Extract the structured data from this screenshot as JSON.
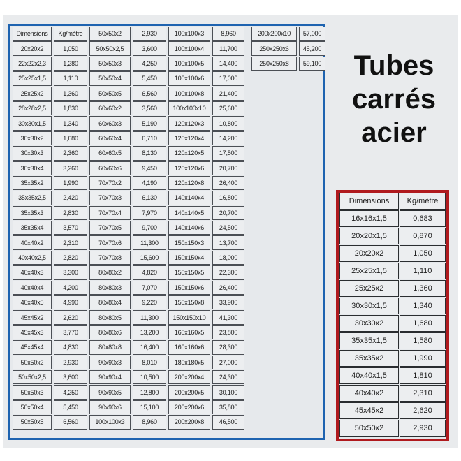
{
  "title_lines": [
    "Tubes",
    "carrés",
    "acier"
  ],
  "colors": {
    "blue_frame": "#1e63b0",
    "red_frame": "#b01a1e"
  },
  "main_table": {
    "rows": [
      [
        "Dimensions",
        "Kg/mètre",
        "50x50x2",
        "2,930",
        "100x100x3",
        "8,960"
      ],
      [
        "20x20x2",
        "1,050",
        "50x50x2,5",
        "3,600",
        "100x100x4",
        "11,700"
      ],
      [
        "22x22x2,3",
        "1,280",
        "50x50x3",
        "4,250",
        "100x100x5",
        "14,400"
      ],
      [
        "25x25x1,5",
        "1,110",
        "50x50x4",
        "5,450",
        "100x100x6",
        "17,000"
      ],
      [
        "25x25x2",
        "1,360",
        "50x50x5",
        "6,560",
        "100x100x8",
        "21,400"
      ],
      [
        "28x28x2,5",
        "1,830",
        "60x60x2",
        "3,560",
        "100x100x10",
        "25,600"
      ],
      [
        "30x30x1,5",
        "1,340",
        "60x60x3",
        "5,190",
        "120x120x3",
        "10,800"
      ],
      [
        "30x30x2",
        "1,680",
        "60x60x4",
        "6,710",
        "120x120x4",
        "14,200"
      ],
      [
        "30x30x3",
        "2,360",
        "60x60x5",
        "8,130",
        "120x120x5",
        "17,500"
      ],
      [
        "30x30x4",
        "3,260",
        "60x60x6",
        "9,450",
        "120x120x6",
        "20,700"
      ],
      [
        "35x35x2",
        "1,990",
        "70x70x2",
        "4,190",
        "120x120x8",
        "26,400"
      ],
      [
        "35x35x2,5",
        "2,420",
        "70x70x3",
        "6,130",
        "140x140x4",
        "16,800"
      ],
      [
        "35x35x3",
        "2,830",
        "70x70x4",
        "7,970",
        "140x140x5",
        "20,700"
      ],
      [
        "35x35x4",
        "3,570",
        "70x70x5",
        "9,700",
        "140x140x6",
        "24,500"
      ],
      [
        "40x40x2",
        "2,310",
        "70x70x6",
        "11,300",
        "150x150x3",
        "13,700"
      ],
      [
        "40x40x2,5",
        "2,820",
        "70x70x8",
        "15,600",
        "150x150x4",
        "18,000"
      ],
      [
        "40x40x3",
        "3,300",
        "80x80x2",
        "4,820",
        "150x150x5",
        "22,300"
      ],
      [
        "40x40x4",
        "4,200",
        "80x80x3",
        "7,070",
        "150x150x6",
        "26,400"
      ],
      [
        "40x40x5",
        "4,990",
        "80x80x4",
        "9,220",
        "150x150x8",
        "33,900"
      ],
      [
        "45x45x2",
        "2,620",
        "80x80x5",
        "11,300",
        "150x150x10",
        "41,300"
      ],
      [
        "45x45x3",
        "3,770",
        "80x80x6",
        "13,200",
        "160x160x5",
        "23,800"
      ],
      [
        "45x45x4",
        "4,830",
        "80x80x8",
        "16,400",
        "160x160x6",
        "28,300"
      ],
      [
        "50x50x2",
        "2,930",
        "90x90x3",
        "8,010",
        "180x180x5",
        "27,000"
      ],
      [
        "50x50x2,5",
        "3,600",
        "90x90x4",
        "10,500",
        "200x200x4",
        "24,300"
      ],
      [
        "50x50x3",
        "4,250",
        "90x90x5",
        "12,800",
        "200x200x5",
        "30,100"
      ],
      [
        "50x50x4",
        "5,450",
        "90x90x6",
        "15,100",
        "200x200x6",
        "35,800"
      ],
      [
        "50x50x5",
        "6,560",
        "100x100x3",
        "8,960",
        "200x200x8",
        "46,500"
      ]
    ]
  },
  "extra_table": {
    "rows": [
      [
        "200x200x10",
        "57,000"
      ],
      [
        "250x250x6",
        "45,200"
      ],
      [
        "250x250x8",
        "59,100"
      ]
    ]
  },
  "red_table": {
    "rows": [
      [
        "Dimensions",
        "Kg/mètre"
      ],
      [
        "16x16x1,5",
        "0,683"
      ],
      [
        "20x20x1,5",
        "0,870"
      ],
      [
        "20x20x2",
        "1,050"
      ],
      [
        "25x25x1,5",
        "1,110"
      ],
      [
        "25x25x2",
        "1,360"
      ],
      [
        "30x30x1,5",
        "1,340"
      ],
      [
        "30x30x2",
        "1,680"
      ],
      [
        "35x35x1,5",
        "1,580"
      ],
      [
        "35x35x2",
        "1,990"
      ],
      [
        "40x40x1,5",
        "1,810"
      ],
      [
        "40x40x2",
        "2,310"
      ],
      [
        "45x45x2",
        "2,620"
      ],
      [
        "50x50x2",
        "2,930"
      ]
    ]
  }
}
